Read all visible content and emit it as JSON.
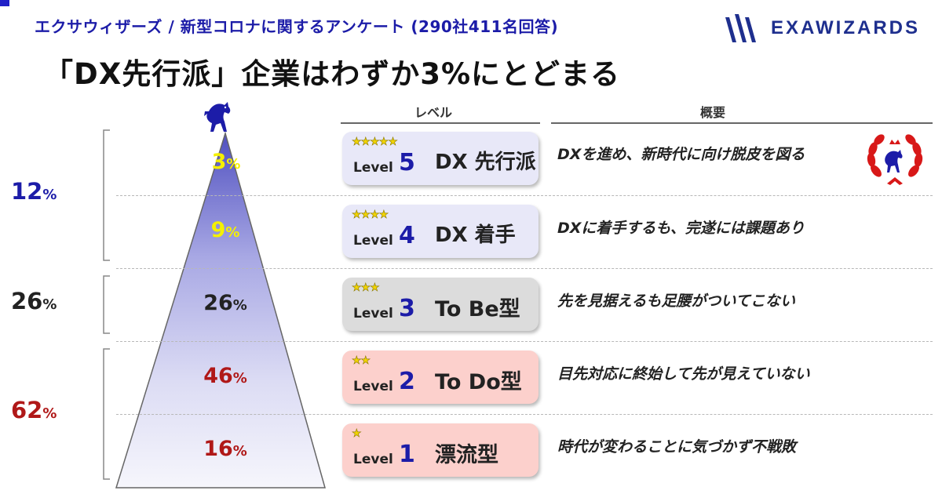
{
  "subtitle": "エクサウィザーズ / 新型コロナに関するアンケート (290社411名回答)",
  "headline": "「DX先行派」企業はわずか3%にとどまる",
  "logo": {
    "name": "EXAWIZARDS"
  },
  "columns": {
    "level": "レベル",
    "summary": "概要"
  },
  "colors": {
    "blue": "#1c1ca8",
    "yellow": "#f5f000",
    "dark": "#222222",
    "red": "#b01818",
    "purple_box": "#e8e8f8",
    "gray_box": "#dcdcdc",
    "pink_box": "#fcd0cc"
  },
  "icons": {
    "top": "horse-icon",
    "badge": "laurel-wreath-horse-icon",
    "logo": "exawizards-logo-icon"
  },
  "chart_data": {
    "type": "pyramid",
    "title": "「DX先行派」企業はわずか3%にとどまる",
    "unit": "%",
    "tiers": [
      {
        "level": "Level",
        "level_num": "5",
        "name": "DX 先行派",
        "stars": "★★★★★",
        "value": 3,
        "unit": "%",
        "desc": "DXを進め、新時代に向け脱皮を図る",
        "value_color": "#f5f000",
        "box_color": "#e8e8f8"
      },
      {
        "level": "Level",
        "level_num": "4",
        "name": "DX 着手",
        "stars": "★★★★",
        "value": 9,
        "unit": "%",
        "desc": "DXに着手するも、完遂には課題あり",
        "value_color": "#f5f000",
        "box_color": "#e8e8f8"
      },
      {
        "level": "Level",
        "level_num": "3",
        "name": "To Be型",
        "stars": "★★★",
        "value": 26,
        "unit": "%",
        "desc": "先を見据えるも足腰がついてこない",
        "value_color": "#222222",
        "box_color": "#dcdcdc"
      },
      {
        "level": "Level",
        "level_num": "2",
        "name": "To Do型",
        "stars": "★★",
        "value": 46,
        "unit": "%",
        "desc": "目先対応に終始して先が見えていない",
        "value_color": "#b01818",
        "box_color": "#fcd0cc"
      },
      {
        "level": "Level",
        "level_num": "1",
        "name": "漂流型",
        "stars": "★",
        "value": 16,
        "unit": "%",
        "desc": "時代が変わることに気づかず不戦敗",
        "value_color": "#b01818",
        "box_color": "#fcd0cc"
      }
    ],
    "groups": [
      {
        "value": 12,
        "unit": "%",
        "levels": [
          5,
          4
        ],
        "color": "#1c1ca8"
      },
      {
        "value": 26,
        "unit": "%",
        "levels": [
          3
        ],
        "color": "#222222"
      },
      {
        "value": 62,
        "unit": "%",
        "levels": [
          2,
          1
        ],
        "color": "#b01818"
      }
    ]
  }
}
